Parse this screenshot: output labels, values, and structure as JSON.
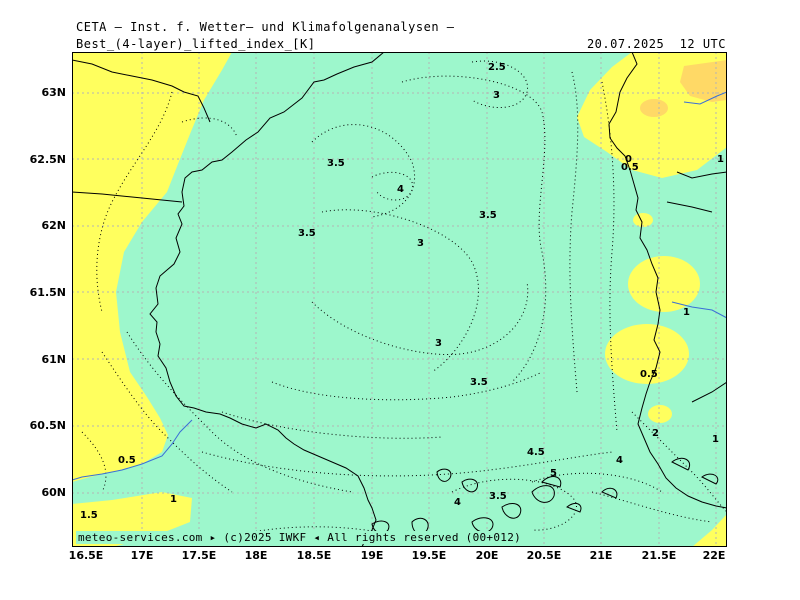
{
  "header": {
    "title": "CETA — Inst. f. Wetter— und Klimafolgenanalysen —",
    "product": "Best_(4-layer)_lifted_index_[K]",
    "valid_time": "20.07.2025  12 UTC"
  },
  "footer": {
    "credit": "meteo-services.com ▸ (c)2025 IWKF ◂ All rights reserved (00+012)"
  },
  "colors": {
    "stable": "#9df7cc",
    "slightly_unstable": "#ffff5e",
    "unstable": "#ffd966",
    "coastline": "#000000",
    "rivers": "#3b6fd6",
    "grid": "#b4b4b4"
  },
  "axes": {
    "latitude_labels": [
      "63N",
      "62.5N",
      "62N",
      "61.5N",
      "61N",
      "60.5N",
      "60N"
    ],
    "longitude_labels": [
      "16.5E",
      "17E",
      "17.5E",
      "18E",
      "18.5E",
      "19E",
      "19.5E",
      "20E",
      "20.5E",
      "21E",
      "21.5E",
      "22E"
    ]
  },
  "contour_labels": [
    "2.5",
    "3",
    "3.5",
    "4",
    "3.5",
    "3.5",
    "3",
    "3",
    "3.5",
    "4.5",
    "5",
    "4",
    "3.5",
    "4",
    "0",
    "0.5",
    "1",
    "1",
    "0.5",
    "2",
    "0.5",
    "1",
    "1.5",
    "1"
  ]
}
